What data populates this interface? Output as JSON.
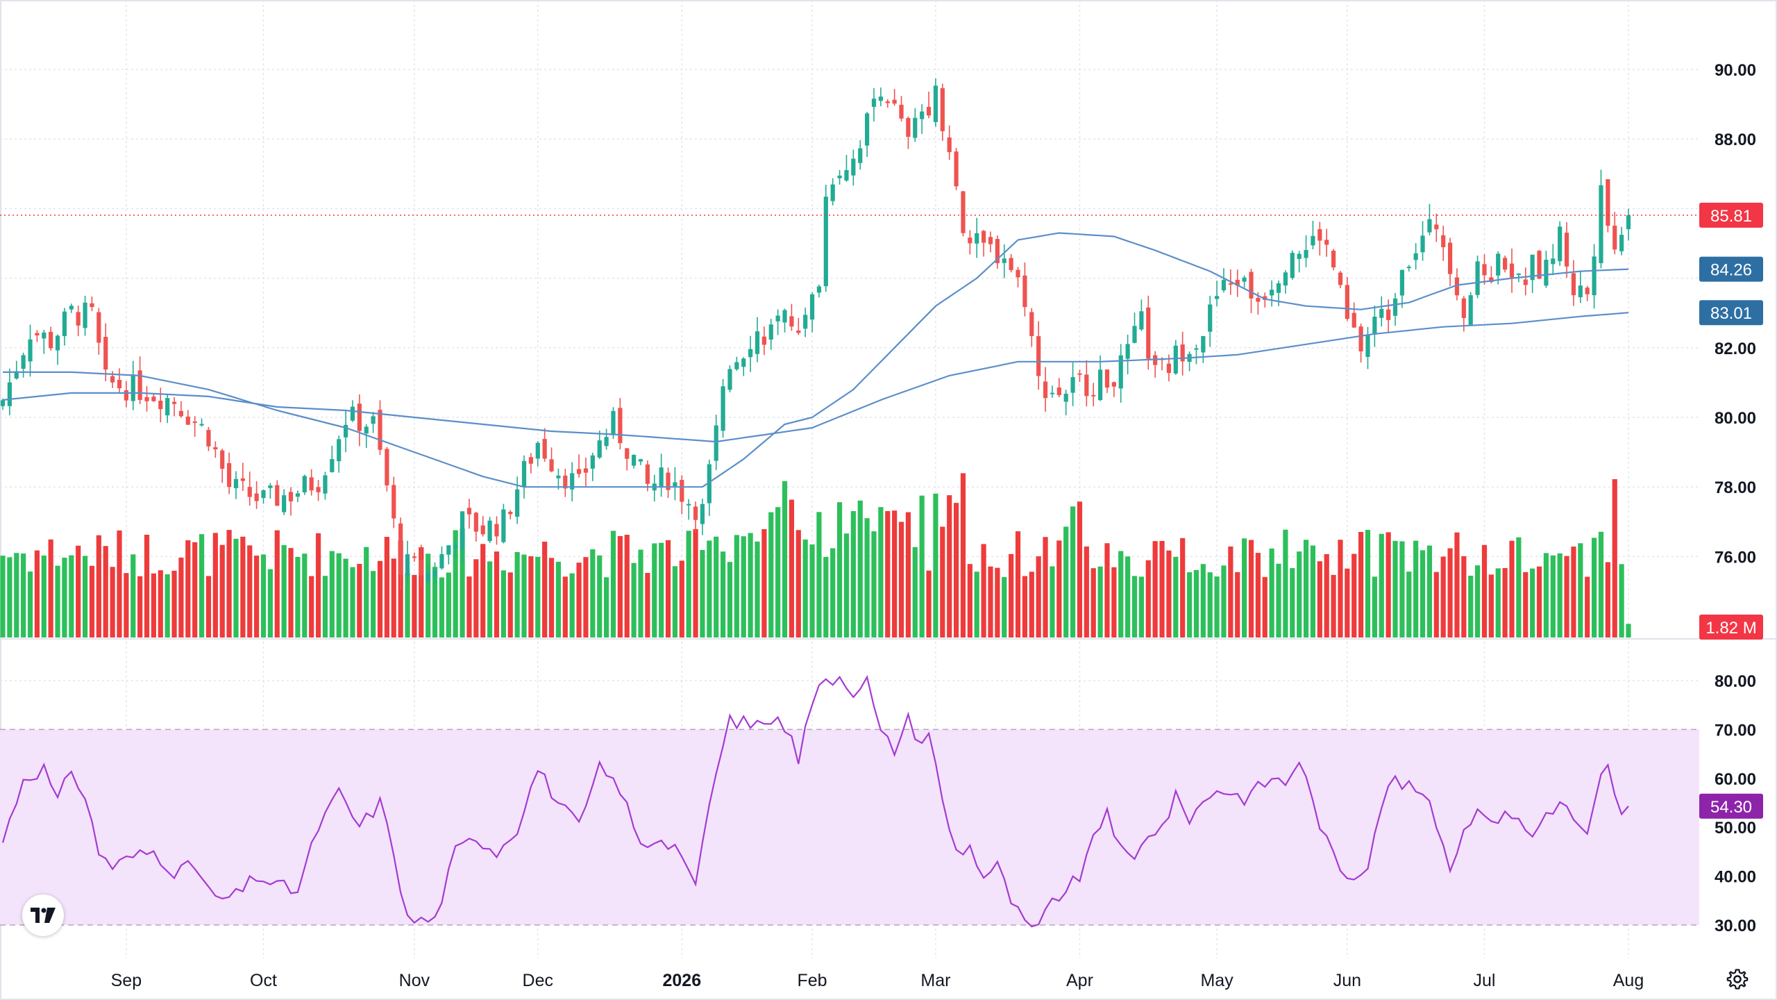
{
  "colors": {
    "up": "#26a69a",
    "up_fill": "#22ab94",
    "down": "#ef5350",
    "vol_up": "#2dbf5b",
    "vol_down": "#ee3b3b",
    "ma_fast": "#5b8ec9",
    "ma_slow": "#5b8ec9",
    "rsi_line": "#a43bd1",
    "rsi_band": "#f3e3fb",
    "grid": "#e3e5ea",
    "last_price": "#f23645",
    "ma_badge": "#2e6fa3",
    "rsi_badge": "#8e24aa"
  },
  "price_axis": {
    "ticks": [
      "90.00",
      "88.00",
      "82.00",
      "80.00",
      "78.00",
      "76.00"
    ],
    "ymin": 74.5,
    "ymax": 91.5
  },
  "rsi_axis": {
    "ticks": [
      "80.00",
      "70.00",
      "60.00",
      "50.00",
      "40.00",
      "30.00"
    ],
    "ymin": 27,
    "ymax": 85,
    "overbought": 70,
    "oversold": 30
  },
  "time_axis": {
    "labels": [
      {
        "text": "Sep",
        "idx": 18,
        "bold": false
      },
      {
        "text": "Oct",
        "idx": 38,
        "bold": false
      },
      {
        "text": "Nov",
        "idx": 60,
        "bold": false
      },
      {
        "text": "Dec",
        "idx": 78,
        "bold": false
      },
      {
        "text": "2026",
        "idx": 99,
        "bold": true
      },
      {
        "text": "Feb",
        "idx": 118,
        "bold": false
      },
      {
        "text": "Mar",
        "idx": 136,
        "bold": false
      },
      {
        "text": "Apr",
        "idx": 157,
        "bold": false
      },
      {
        "text": "May",
        "idx": 177,
        "bold": false
      },
      {
        "text": "Jun",
        "idx": 196,
        "bold": false
      },
      {
        "text": "Jul",
        "idx": 216,
        "bold": false
      },
      {
        "text": "Aug",
        "idx": 237,
        "bold": false
      }
    ]
  },
  "badges": {
    "last_price": "85.81",
    "ma_fast": "84.26",
    "ma_slow": "83.01",
    "volume": "1.82 M",
    "rsi": "54.30"
  },
  "icons": {
    "logo": "tradingview-logo-icon",
    "settings": "gear-icon"
  },
  "chart_data": {
    "type": "candlestick",
    "count": 238,
    "close_anchors": [
      [
        0,
        80.5
      ],
      [
        4,
        82.5
      ],
      [
        7,
        82.2
      ],
      [
        10,
        83.0
      ],
      [
        13,
        82.9
      ],
      [
        15,
        81.0
      ],
      [
        20,
        80.8
      ],
      [
        25,
        80.5
      ],
      [
        30,
        79.5
      ],
      [
        33,
        78.0
      ],
      [
        38,
        77.6
      ],
      [
        42,
        77.8
      ],
      [
        46,
        78.2
      ],
      [
        50,
        80.0
      ],
      [
        54,
        79.8
      ],
      [
        56,
        78.0
      ],
      [
        58,
        75.8
      ],
      [
        62,
        75.5
      ],
      [
        64,
        76.0
      ],
      [
        67,
        77.0
      ],
      [
        70,
        76.8
      ],
      [
        73,
        77.0
      ],
      [
        75,
        78.0
      ],
      [
        78,
        79.3
      ],
      [
        81,
        78.5
      ],
      [
        84,
        78.0
      ],
      [
        86,
        79.0
      ],
      [
        89,
        79.8
      ],
      [
        92,
        78.8
      ],
      [
        94,
        78.0
      ],
      [
        97,
        78.3
      ],
      [
        100,
        77.6
      ],
      [
        102,
        77.3
      ],
      [
        104,
        79.5
      ],
      [
        106,
        81.5
      ],
      [
        109,
        82.3
      ],
      [
        112,
        82.5
      ],
      [
        115,
        82.8
      ],
      [
        117,
        82.7
      ],
      [
        119,
        84.0
      ],
      [
        120,
        86.3
      ],
      [
        121,
        87.0
      ],
      [
        124,
        87.5
      ],
      [
        126,
        88.5
      ],
      [
        128,
        89.6
      ],
      [
        130,
        88.8
      ],
      [
        132,
        87.9
      ],
      [
        134,
        88.8
      ],
      [
        136,
        89.3
      ],
      [
        138,
        87.8
      ],
      [
        140,
        85.2
      ],
      [
        142,
        84.9
      ],
      [
        146,
        84.7
      ],
      [
        149,
        83.5
      ],
      [
        151,
        81.0
      ],
      [
        154,
        80.7
      ],
      [
        157,
        81.0
      ],
      [
        160,
        81.0
      ],
      [
        163,
        81.4
      ],
      [
        166,
        82.7
      ],
      [
        168,
        81.2
      ],
      [
        170,
        81.5
      ],
      [
        172,
        82.0
      ],
      [
        175,
        82.5
      ],
      [
        177,
        83.5
      ],
      [
        180,
        84.0
      ],
      [
        183,
        83.4
      ],
      [
        186,
        84.2
      ],
      [
        188,
        84.9
      ],
      [
        190,
        84.8
      ],
      [
        192,
        85.3
      ],
      [
        194,
        84.3
      ],
      [
        196,
        82.7
      ],
      [
        198,
        82.0
      ],
      [
        200,
        82.8
      ],
      [
        202,
        83.0
      ],
      [
        204,
        84.5
      ],
      [
        207,
        85.1
      ],
      [
        209,
        85.6
      ],
      [
        211,
        84.5
      ],
      [
        213,
        83.1
      ],
      [
        215,
        84.1
      ],
      [
        217,
        84.2
      ],
      [
        219,
        84.6
      ],
      [
        221,
        83.8
      ],
      [
        223,
        84.3
      ],
      [
        225,
        84.2
      ],
      [
        227,
        85.3
      ],
      [
        229,
        83.7
      ],
      [
        231,
        83.6
      ],
      [
        232,
        85.0
      ],
      [
        233,
        87.0
      ],
      [
        234,
        85.6
      ],
      [
        235,
        84.7
      ],
      [
        236,
        85.6
      ],
      [
        237,
        85.81
      ]
    ],
    "ma_fast_anchors": [
      [
        0,
        81.3
      ],
      [
        10,
        81.3
      ],
      [
        20,
        81.2
      ],
      [
        30,
        80.8
      ],
      [
        40,
        80.2
      ],
      [
        50,
        79.7
      ],
      [
        60,
        79.0
      ],
      [
        70,
        78.3
      ],
      [
        76,
        78.0
      ],
      [
        85,
        78.0
      ],
      [
        95,
        78.0
      ],
      [
        102,
        78.0
      ],
      [
        108,
        78.8
      ],
      [
        114,
        79.8
      ],
      [
        118,
        80.0
      ],
      [
        124,
        80.8
      ],
      [
        130,
        82.0
      ],
      [
        136,
        83.2
      ],
      [
        142,
        84.0
      ],
      [
        148,
        85.1
      ],
      [
        154,
        85.3
      ],
      [
        162,
        85.2
      ],
      [
        168,
        84.8
      ],
      [
        176,
        84.2
      ],
      [
        184,
        83.4
      ],
      [
        190,
        83.2
      ],
      [
        198,
        83.1
      ],
      [
        205,
        83.3
      ],
      [
        212,
        83.8
      ],
      [
        220,
        84.0
      ],
      [
        230,
        84.2
      ],
      [
        237,
        84.26
      ]
    ],
    "ma_slow_anchors": [
      [
        0,
        80.5
      ],
      [
        10,
        80.7
      ],
      [
        20,
        80.7
      ],
      [
        30,
        80.6
      ],
      [
        40,
        80.3
      ],
      [
        50,
        80.2
      ],
      [
        60,
        80.0
      ],
      [
        70,
        79.8
      ],
      [
        80,
        79.6
      ],
      [
        90,
        79.5
      ],
      [
        104,
        79.3
      ],
      [
        118,
        79.7
      ],
      [
        128,
        80.5
      ],
      [
        138,
        81.2
      ],
      [
        148,
        81.6
      ],
      [
        160,
        81.6
      ],
      [
        172,
        81.7
      ],
      [
        180,
        81.8
      ],
      [
        190,
        82.1
      ],
      [
        200,
        82.4
      ],
      [
        210,
        82.6
      ],
      [
        220,
        82.7
      ],
      [
        230,
        82.9
      ],
      [
        237,
        83.01
      ]
    ],
    "volume_max": 2.9,
    "volume_last": 1.82,
    "rsi_anchors": [
      [
        0,
        47
      ],
      [
        3,
        60
      ],
      [
        6,
        62
      ],
      [
        8,
        55
      ],
      [
        10,
        62
      ],
      [
        12,
        56
      ],
      [
        14,
        45
      ],
      [
        16,
        42
      ],
      [
        19,
        44
      ],
      [
        22,
        45
      ],
      [
        25,
        41
      ],
      [
        28,
        42
      ],
      [
        31,
        35
      ],
      [
        34,
        36
      ],
      [
        37,
        40
      ],
      [
        40,
        38
      ],
      [
        43,
        37
      ],
      [
        46,
        50
      ],
      [
        49,
        57
      ],
      [
        52,
        50
      ],
      [
        55,
        55
      ],
      [
        57,
        45
      ],
      [
        59,
        31
      ],
      [
        61,
        31
      ],
      [
        63,
        31
      ],
      [
        66,
        45
      ],
      [
        69,
        48
      ],
      [
        72,
        45
      ],
      [
        75,
        50
      ],
      [
        78,
        62
      ],
      [
        81,
        55
      ],
      [
        84,
        50
      ],
      [
        87,
        62
      ],
      [
        90,
        58
      ],
      [
        93,
        46
      ],
      [
        96,
        48
      ],
      [
        99,
        45
      ],
      [
        101,
        37
      ],
      [
        103,
        55
      ],
      [
        106,
        72
      ],
      [
        109,
        71
      ],
      [
        112,
        72
      ],
      [
        115,
        70
      ],
      [
        116,
        64
      ],
      [
        118,
        76
      ],
      [
        120,
        80
      ],
      [
        122,
        81
      ],
      [
        124,
        78
      ],
      [
        126,
        80
      ],
      [
        128,
        69
      ],
      [
        130,
        66
      ],
      [
        132,
        72
      ],
      [
        134,
        67
      ],
      [
        135,
        70
      ],
      [
        137,
        55
      ],
      [
        139,
        45
      ],
      [
        141,
        46
      ],
      [
        143,
        40
      ],
      [
        145,
        42
      ],
      [
        147,
        35
      ],
      [
        149,
        30
      ],
      [
        151,
        29
      ],
      [
        153,
        35
      ],
      [
        155,
        37
      ],
      [
        157,
        40
      ],
      [
        159,
        47
      ],
      [
        161,
        54
      ],
      [
        163,
        45
      ],
      [
        165,
        43
      ],
      [
        167,
        49
      ],
      [
        169,
        50
      ],
      [
        171,
        56
      ],
      [
        173,
        52
      ],
      [
        175,
        55
      ],
      [
        177,
        58
      ],
      [
        179,
        57
      ],
      [
        181,
        56
      ],
      [
        183,
        58
      ],
      [
        185,
        60
      ],
      [
        187,
        59
      ],
      [
        189,
        64
      ],
      [
        191,
        55
      ],
      [
        193,
        47
      ],
      [
        195,
        41
      ],
      [
        197,
        40
      ],
      [
        199,
        43
      ],
      [
        201,
        55
      ],
      [
        203,
        60
      ],
      [
        205,
        58
      ],
      [
        207,
        57
      ],
      [
        209,
        51
      ],
      [
        211,
        42
      ],
      [
        213,
        49
      ],
      [
        215,
        55
      ],
      [
        217,
        50
      ],
      [
        219,
        54
      ],
      [
        221,
        51
      ],
      [
        223,
        48
      ],
      [
        225,
        53
      ],
      [
        227,
        55
      ],
      [
        229,
        52
      ],
      [
        231,
        48
      ],
      [
        233,
        60
      ],
      [
        234,
        62
      ],
      [
        235,
        56
      ],
      [
        236,
        52
      ],
      [
        237,
        54.3
      ]
    ]
  }
}
